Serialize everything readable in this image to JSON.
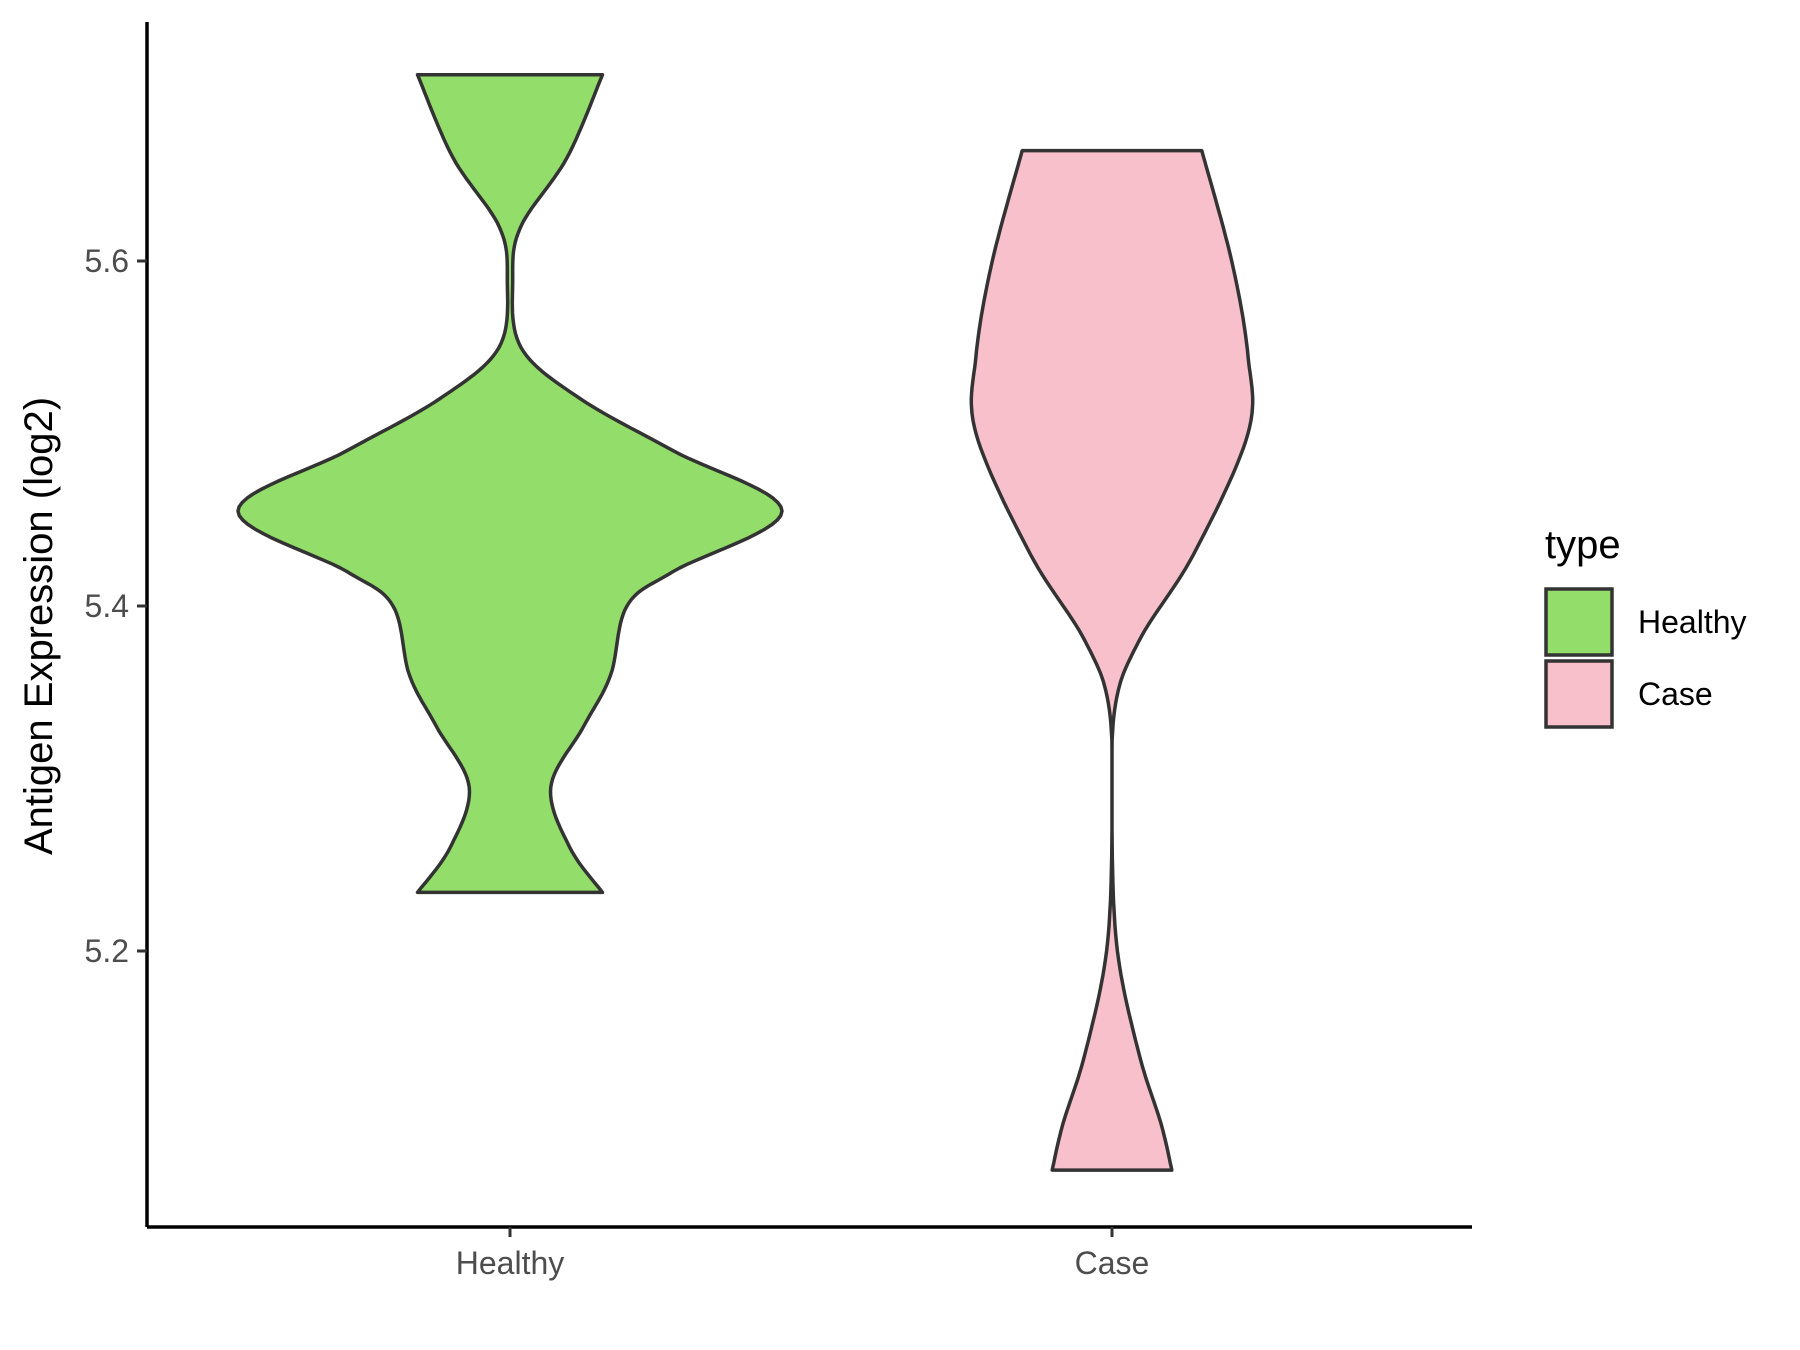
{
  "chart_data": {
    "type": "violin",
    "title": "",
    "xlabel": "",
    "ylabel": "Antigen Expression (log2)",
    "ylim": [
      5.04,
      5.74
    ],
    "yticks": [
      5.2,
      5.4,
      5.6
    ],
    "categories": [
      "Healthy",
      "Case"
    ],
    "grid": false,
    "legend": {
      "title": "type",
      "position": "right",
      "entries": [
        {
          "label": "Healthy",
          "color": "#93DD6A"
        },
        {
          "label": "Case",
          "color": "#F8C0CB"
        }
      ]
    },
    "series": [
      {
        "name": "Healthy",
        "color": "#93DD6A",
        "min": 5.234,
        "max": 5.708,
        "density": [
          [
            5.234,
            0.34
          ],
          [
            5.26,
            0.22
          ],
          [
            5.295,
            0.15
          ],
          [
            5.33,
            0.27
          ],
          [
            5.36,
            0.37
          ],
          [
            5.4,
            0.43
          ],
          [
            5.42,
            0.6
          ],
          [
            5.455,
            1.0
          ],
          [
            5.49,
            0.6
          ],
          [
            5.52,
            0.26
          ],
          [
            5.55,
            0.04
          ],
          [
            5.59,
            0.01
          ],
          [
            5.62,
            0.04
          ],
          [
            5.66,
            0.21
          ],
          [
            5.708,
            0.34
          ]
        ]
      },
      {
        "name": "Case",
        "color": "#F8C0CB",
        "min": 5.073,
        "max": 5.664,
        "density": [
          [
            5.073,
            0.22
          ],
          [
            5.1,
            0.18
          ],
          [
            5.14,
            0.1
          ],
          [
            5.2,
            0.02
          ],
          [
            5.27,
            0.0
          ],
          [
            5.34,
            0.01
          ],
          [
            5.38,
            0.1
          ],
          [
            5.43,
            0.3
          ],
          [
            5.5,
            0.5
          ],
          [
            5.545,
            0.5
          ],
          [
            5.6,
            0.44
          ],
          [
            5.664,
            0.33
          ]
        ]
      }
    ]
  }
}
